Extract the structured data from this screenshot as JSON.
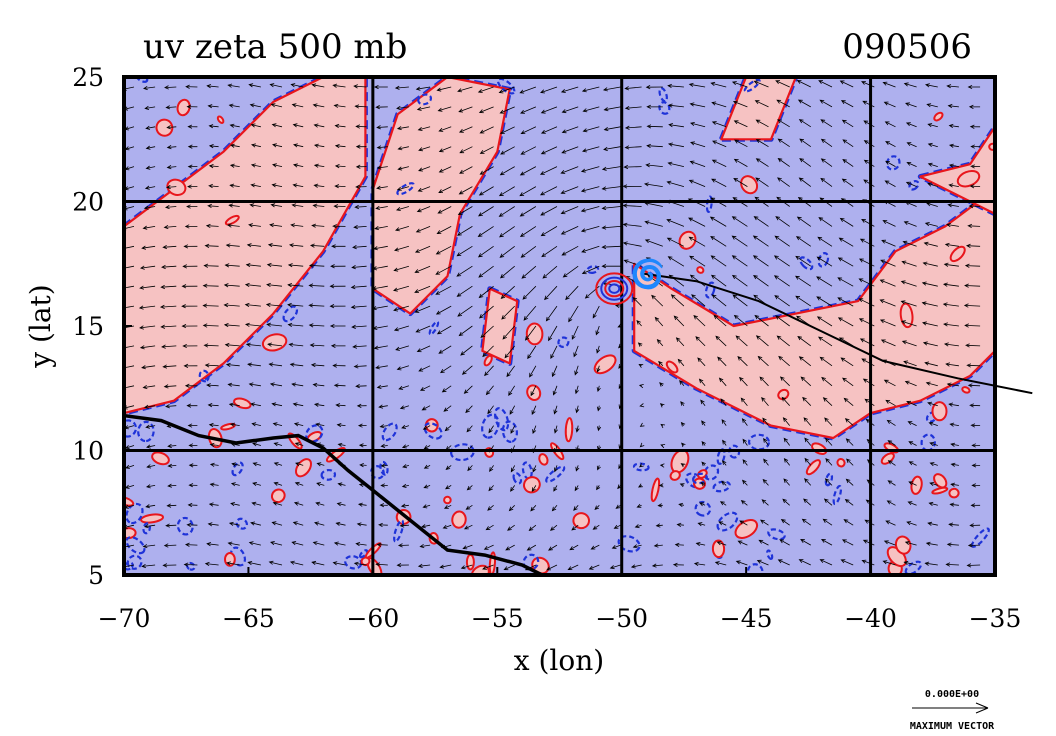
{
  "title": {
    "left": "uv zeta 500 mb",
    "right": "090506"
  },
  "colors": {
    "positive_fill": "#f6c2c2",
    "negative_fill": "#aeb0ee",
    "positive_contour": "#e8161c",
    "negative_contour": "#1f33d8",
    "coastline": "#000000",
    "track": "#000000",
    "vector": "#000000"
  },
  "chart_data": {
    "type": "vector-field-contour-map",
    "title": "uv zeta 500 mb",
    "date_label": "090506",
    "xlabel": "x (lon)",
    "ylabel": "y (lat)",
    "xlim": [
      -70,
      -35
    ],
    "ylim": [
      5,
      25
    ],
    "grid": true,
    "x_ticks": [
      {
        "value": -70,
        "label": "−70"
      },
      {
        "value": -65,
        "label": "−65"
      },
      {
        "value": -60,
        "label": "−60"
      },
      {
        "value": -55,
        "label": "−55"
      },
      {
        "value": -50,
        "label": "−50"
      },
      {
        "value": -45,
        "label": "−45"
      },
      {
        "value": -40,
        "label": "−40"
      },
      {
        "value": -35,
        "label": "−35"
      }
    ],
    "y_ticks": [
      {
        "value": 5,
        "label": "5"
      },
      {
        "value": 10,
        "label": "10"
      },
      {
        "value": 15,
        "label": "15"
      },
      {
        "value": 20,
        "label": "20"
      },
      {
        "value": 25,
        "label": "25"
      }
    ],
    "gridlines_x": [
      -60,
      -50,
      -40
    ],
    "gridlines_y": [
      10,
      20
    ],
    "storm_center": {
      "lon": -50.3,
      "lat": 16.5
    },
    "storm_symbol_pos": {
      "lon": -49.1,
      "lat": 17.1
    },
    "track": [
      {
        "lon": -49.1,
        "lat": 17.1
      },
      {
        "lon": -47.0,
        "lat": 16.8
      },
      {
        "lon": -44.5,
        "lat": 16.0
      },
      {
        "lon": -42.0,
        "lat": 14.8
      },
      {
        "lon": -39.5,
        "lat": 13.6
      },
      {
        "lon": -36.5,
        "lat": 12.9
      },
      {
        "lon": -33.5,
        "lat": 12.3
      }
    ],
    "positive_regions": [
      [
        [
          -70,
          19
        ],
        [
          -68,
          20.5
        ],
        [
          -66,
          22
        ],
        [
          -64,
          24
        ],
        [
          -62,
          25
        ],
        [
          -60.3,
          25
        ],
        [
          -60.3,
          21
        ],
        [
          -62,
          18
        ],
        [
          -64,
          15.5
        ],
        [
          -66,
          13.5
        ],
        [
          -68,
          12
        ],
        [
          -70,
          11.5
        ]
      ],
      [
        [
          -60,
          20.5
        ],
        [
          -59,
          23.5
        ],
        [
          -57,
          25
        ],
        [
          -54.5,
          24.5
        ],
        [
          -55,
          22
        ],
        [
          -56.5,
          19.5
        ],
        [
          -57,
          17
        ],
        [
          -58.5,
          15.5
        ],
        [
          -60,
          16.5
        ]
      ],
      [
        [
          -49.5,
          14
        ],
        [
          -47,
          12.5
        ],
        [
          -44,
          11
        ],
        [
          -41.5,
          10.5
        ],
        [
          -40,
          11.5
        ],
        [
          -38,
          12
        ],
        [
          -36,
          13
        ],
        [
          -35,
          14
        ],
        [
          -35,
          20.5
        ],
        [
          -37,
          19
        ],
        [
          -39,
          18
        ],
        [
          -40.5,
          16
        ],
        [
          -43,
          15.5
        ],
        [
          -45.5,
          15
        ],
        [
          -48,
          16.5
        ],
        [
          -49.5,
          17.5
        ]
      ],
      [
        [
          -46,
          22.5
        ],
        [
          -45,
          25
        ],
        [
          -43,
          25
        ],
        [
          -44,
          22.5
        ]
      ],
      [
        [
          -38,
          21
        ],
        [
          -36,
          21.5
        ],
        [
          -35,
          23
        ],
        [
          -35,
          19.5
        ]
      ],
      [
        [
          -55.3,
          16.5
        ],
        [
          -54.2,
          16
        ],
        [
          -54.5,
          13.5
        ],
        [
          -55.6,
          14
        ]
      ]
    ],
    "coastline": [
      {
        "lon": -70,
        "lat": 11.4
      },
      {
        "lon": -68.5,
        "lat": 11.2
      },
      {
        "lon": -67,
        "lat": 10.6
      },
      {
        "lon": -65.5,
        "lat": 10.3
      },
      {
        "lon": -64,
        "lat": 10.5
      },
      {
        "lon": -63,
        "lat": 10.6
      },
      {
        "lon": -62,
        "lat": 10.1
      },
      {
        "lon": -61,
        "lat": 9.2
      },
      {
        "lon": -60,
        "lat": 8.4
      },
      {
        "lon": -58.5,
        "lat": 7.2
      },
      {
        "lon": -57,
        "lat": 6.0
      },
      {
        "lon": -55.5,
        "lat": 5.8
      },
      {
        "lon": -54,
        "lat": 5.4
      },
      {
        "lon": -53.2,
        "lat": 5.0
      }
    ],
    "max_vector_label": "0.000E+00",
    "max_vector_caption": "MAXIMUM VECTOR"
  }
}
